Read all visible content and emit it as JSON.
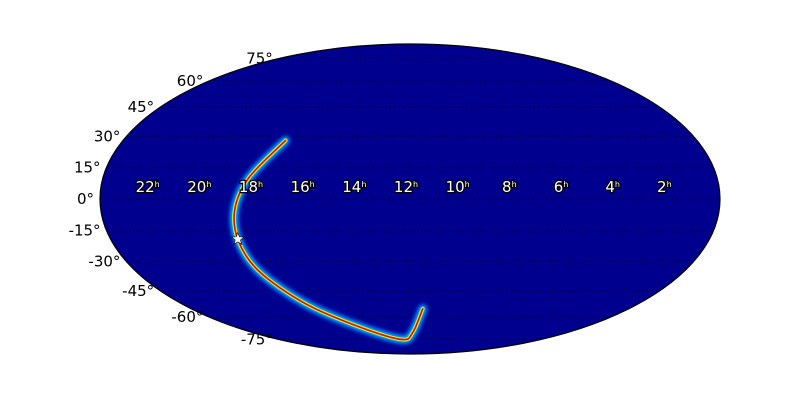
{
  "chart_data": {
    "type": "heatmap",
    "projection": "mollweide",
    "grid": true,
    "background_color": "#00008f",
    "colormap": [
      "#00008f",
      "#0050ff",
      "#00e0ff",
      "#80ff80",
      "#ffee00",
      "#ff3000",
      "#a00000"
    ],
    "dec_tick_labels": [
      "75°",
      "60°",
      "45°",
      "30°",
      "15°",
      "0°",
      "-15°",
      "-30°",
      "-45°",
      "-60°",
      "-75°"
    ],
    "dec_ticks": [
      75,
      60,
      45,
      30,
      15,
      0,
      -15,
      -30,
      -45,
      -60,
      -75
    ],
    "ra_tick_labels": [
      {
        "value": "22",
        "unit": "h"
      },
      {
        "value": "20",
        "unit": "h"
      },
      {
        "value": "18",
        "unit": "h"
      },
      {
        "value": "16",
        "unit": "h"
      },
      {
        "value": "14",
        "unit": "h"
      },
      {
        "value": "12",
        "unit": "h"
      },
      {
        "value": "10",
        "unit": "h"
      },
      {
        "value": "8",
        "unit": "h"
      },
      {
        "value": "6",
        "unit": "h"
      },
      {
        "value": "4",
        "unit": "h"
      },
      {
        "value": "2",
        "unit": "h"
      }
    ],
    "ra_ticks_hours": [
      22,
      20,
      18,
      16,
      14,
      12,
      10,
      8,
      6,
      4,
      2
    ],
    "probability_arc": {
      "ra_hours": [
        17.2,
        18.3,
        18.8,
        18.9,
        18.6,
        17.5,
        15.5,
        12.8,
        11.8,
        11.3
      ],
      "dec_deg": [
        28,
        10,
        -5,
        -20,
        -35,
        -52,
        -66,
        -75,
        -70,
        -55
      ]
    },
    "marker": {
      "symbol": "star",
      "ra_hours": 18.9,
      "dec_deg": -19,
      "color": "#ffffff"
    }
  }
}
